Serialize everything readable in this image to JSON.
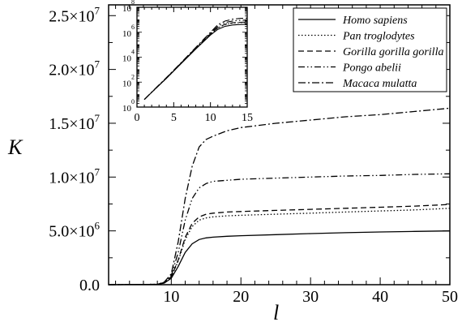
{
  "chart_data": [
    {
      "type": "line",
      "xlabel": "l",
      "ylabel": "K",
      "xlim": [
        1,
        50
      ],
      "ylim": [
        0,
        26000000
      ],
      "x_ticks": [
        10,
        20,
        30,
        40,
        50
      ],
      "x_tick_labels": [
        "10",
        "20",
        "30",
        "40",
        "50"
      ],
      "y_ticks": [
        0,
        5000000,
        10000000,
        15000000,
        20000000,
        25000000
      ],
      "y_tick_labels": [
        {
          "mantissa": "0.0",
          "exponent": ""
        },
        {
          "mantissa": "5.0×10",
          "exponent": "6"
        },
        {
          "mantissa": "1.0×10",
          "exponent": "7"
        },
        {
          "mantissa": "1.5×10",
          "exponent": "7"
        },
        {
          "mantissa": "2.0×10",
          "exponent": "7"
        },
        {
          "mantissa": "2.5×10",
          "exponent": "7"
        }
      ],
      "grid": false,
      "legend_position": "top-right",
      "x": [
        1,
        8,
        9,
        10,
        11,
        12,
        13,
        14,
        15,
        16,
        18,
        20,
        25,
        30,
        35,
        40,
        45,
        50
      ],
      "series": [
        {
          "name": "Homo sapiens",
          "dash": "solid",
          "values": [
            0,
            30000,
            150000,
            600000,
            1700000,
            3000000,
            3800000,
            4200000,
            4350000,
            4420000,
            4500000,
            4550000,
            4650000,
            4750000,
            4830000,
            4900000,
            4950000,
            5000000
          ]
        },
        {
          "name": "Pan troglodytes",
          "dash": "dotted",
          "values": [
            0,
            30000,
            170000,
            700000,
            2200000,
            4200000,
            5400000,
            6000000,
            6200000,
            6300000,
            6400000,
            6450000,
            6550000,
            6650000,
            6750000,
            6850000,
            6950000,
            7100000
          ]
        },
        {
          "name": "Gorilla gorilla gorilla",
          "dash": "dashed",
          "values": [
            0,
            30000,
            180000,
            750000,
            2300000,
            4400000,
            5700000,
            6300000,
            6550000,
            6650000,
            6750000,
            6800000,
            6900000,
            7000000,
            7100000,
            7200000,
            7300000,
            7450000
          ]
        },
        {
          "name": "Pongo abelii",
          "dash": "dash-dot-dot",
          "values": [
            0,
            35000,
            200000,
            850000,
            3000000,
            6000000,
            8000000,
            9000000,
            9400000,
            9600000,
            9700000,
            9800000,
            9900000,
            10000000,
            10100000,
            10150000,
            10250000,
            10300000
          ]
        },
        {
          "name": "Macaca mulatta",
          "dash": "dash-dot",
          "values": [
            0,
            40000,
            250000,
            1000000,
            4000000,
            8000000,
            11000000,
            12800000,
            13500000,
            13800000,
            14300000,
            14600000,
            15000000,
            15300000,
            15600000,
            15800000,
            16100000,
            16400000
          ]
        }
      ]
    },
    {
      "type": "line",
      "scale_y": "log",
      "xlim": [
        0,
        15
      ],
      "ylim": [
        1,
        100000000
      ],
      "x_ticks": [
        0,
        5,
        10,
        15
      ],
      "x_tick_labels": [
        "0",
        "5",
        "10",
        "15"
      ],
      "y_ticks": [
        1,
        100,
        10000,
        1000000,
        100000000
      ],
      "y_tick_labels": [
        {
          "mantissa": "10",
          "exponent": "0"
        },
        {
          "mantissa": "10",
          "exponent": "2"
        },
        {
          "mantissa": "10",
          "exponent": "4"
        },
        {
          "mantissa": "10",
          "exponent": "6"
        },
        {
          "mantissa": "10",
          "exponent": "8"
        }
      ],
      "grid": false,
      "x": [
        1,
        2,
        4,
        6,
        8,
        10,
        11,
        12,
        13,
        14,
        15
      ],
      "series": [
        {
          "name": "Homo sapiens",
          "dash": "solid",
          "values": [
            4,
            15,
            200,
            3000,
            45000,
            600000,
            1700000,
            3000000,
            3800000,
            4200000,
            4350000
          ]
        },
        {
          "name": "Pan troglodytes",
          "dash": "dotted",
          "values": [
            4,
            15,
            200,
            3100,
            48000,
            700000,
            2200000,
            4200000,
            5400000,
            6000000,
            6200000
          ]
        },
        {
          "name": "Gorilla gorilla gorilla",
          "dash": "dashed",
          "values": [
            4,
            15,
            210,
            3200,
            50000,
            750000,
            2300000,
            4400000,
            5700000,
            6300000,
            6550000
          ]
        },
        {
          "name": "Pongo abelii",
          "dash": "dash-dot-dot",
          "values": [
            4,
            15,
            220,
            3400,
            55000,
            850000,
            3000000,
            6000000,
            8000000,
            9000000,
            9400000
          ]
        },
        {
          "name": "Macaca mulatta",
          "dash": "dash-dot",
          "values": [
            4,
            16,
            230,
            3600,
            60000,
            1000000,
            4000000,
            8000000,
            11000000,
            12800000,
            13500000
          ]
        }
      ]
    }
  ]
}
